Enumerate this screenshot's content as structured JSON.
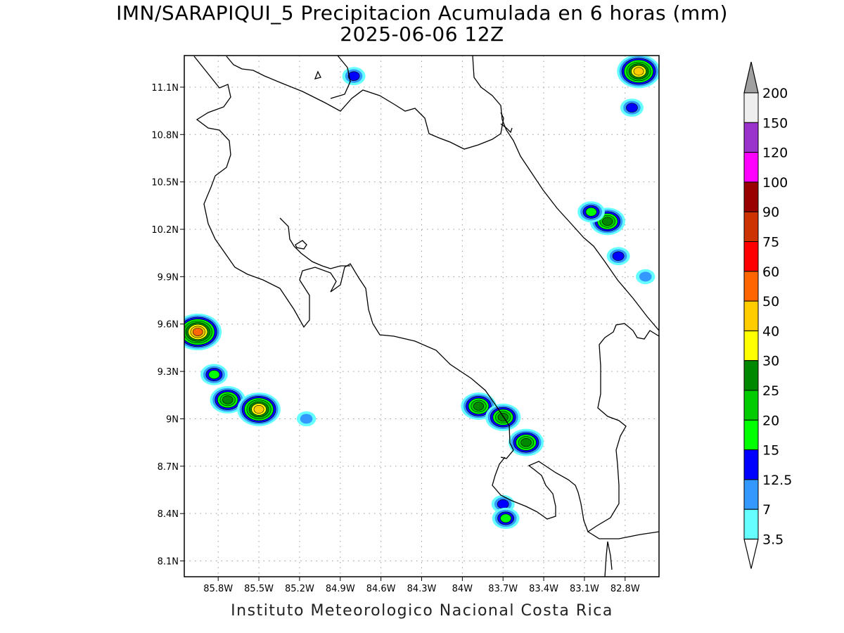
{
  "title": {
    "line1": "IMN/SARAPIQUI_5 Precipitacion Acumulada en 6 horas (mm)",
    "line2": "2025-06-06 12Z"
  },
  "credit": "Instituto Meteorologico Nacional Costa Rica",
  "map": {
    "lon_range": [
      -86.05,
      -82.55
    ],
    "lat_range": [
      8.0,
      11.3
    ],
    "lon_ticks": [
      {
        "value": -85.8,
        "label": "85.8W"
      },
      {
        "value": -85.5,
        "label": "85.5W"
      },
      {
        "value": -85.2,
        "label": "85.2W"
      },
      {
        "value": -84.9,
        "label": "84.9W"
      },
      {
        "value": -84.6,
        "label": "84.6W"
      },
      {
        "value": -84.3,
        "label": "84.3W"
      },
      {
        "value": -84.0,
        "label": "84W"
      },
      {
        "value": -83.7,
        "label": "83.7W"
      },
      {
        "value": -83.4,
        "label": "83.4W"
      },
      {
        "value": -83.1,
        "label": "83.1W"
      },
      {
        "value": -82.8,
        "label": "82.8W"
      }
    ],
    "lat_ticks": [
      {
        "value": 11.1,
        "label": "11.1N"
      },
      {
        "value": 10.8,
        "label": "10.8N"
      },
      {
        "value": 10.5,
        "label": "10.5N"
      },
      {
        "value": 10.2,
        "label": "10.2N"
      },
      {
        "value": 9.9,
        "label": "9.9N"
      },
      {
        "value": 9.6,
        "label": "9.6N"
      },
      {
        "value": 9.3,
        "label": "9.3N"
      },
      {
        "value": 9.0,
        "label": "9N"
      },
      {
        "value": 8.7,
        "label": "8.7N"
      },
      {
        "value": 8.4,
        "label": "8.4N"
      },
      {
        "value": 8.1,
        "label": "8.1N"
      }
    ],
    "grid": true,
    "coastline_color": "#000000"
  },
  "colorbar": {
    "levels": [
      {
        "label": "3.5",
        "color": "#ffffff"
      },
      {
        "label": "7",
        "color": "#66ffff"
      },
      {
        "label": "12.5",
        "color": "#3399ff"
      },
      {
        "label": "15",
        "color": "#0000ff"
      },
      {
        "label": "20",
        "color": "#00ff00"
      },
      {
        "label": "25",
        "color": "#00cc00"
      },
      {
        "label": "30",
        "color": "#008800"
      },
      {
        "label": "40",
        "color": "#ffff00"
      },
      {
        "label": "50",
        "color": "#ffcc00"
      },
      {
        "label": "60",
        "color": "#ff6600"
      },
      {
        "label": "75",
        "color": "#ff0000"
      },
      {
        "label": "90",
        "color": "#cc3300"
      },
      {
        "label": "100",
        "color": "#990000"
      },
      {
        "label": "120",
        "color": "#ff00ff"
      },
      {
        "label": "150",
        "color": "#9933cc"
      },
      {
        "label": "200",
        "color": "#eeeeee"
      }
    ],
    "over_color": "#a0a0a0",
    "under_color": "#ffffff"
  },
  "chart_data": {
    "type": "heatmap",
    "units": "mm",
    "cells": [
      {
        "lon": -85.95,
        "lat": 9.55,
        "max_mm": 55
      },
      {
        "lon": -85.83,
        "lat": 9.28,
        "max_mm": 15
      },
      {
        "lon": -85.73,
        "lat": 9.12,
        "max_mm": 25
      },
      {
        "lon": -85.5,
        "lat": 9.06,
        "max_mm": 40
      },
      {
        "lon": -85.15,
        "lat": 9.0,
        "max_mm": 7
      },
      {
        "lon": -83.88,
        "lat": 9.08,
        "max_mm": 25
      },
      {
        "lon": -83.7,
        "lat": 9.01,
        "max_mm": 25
      },
      {
        "lon": -83.53,
        "lat": 8.85,
        "max_mm": 25
      },
      {
        "lon": -83.7,
        "lat": 8.46,
        "max_mm": 12.5
      },
      {
        "lon": -83.68,
        "lat": 8.37,
        "max_mm": 15
      },
      {
        "lon": -82.93,
        "lat": 10.25,
        "max_mm": 25
      },
      {
        "lon": -83.05,
        "lat": 10.31,
        "max_mm": 15
      },
      {
        "lon": -82.7,
        "lat": 11.2,
        "max_mm": 40
      },
      {
        "lon": -82.75,
        "lat": 10.97,
        "max_mm": 12.5
      },
      {
        "lon": -84.8,
        "lat": 11.17,
        "max_mm": 12.5
      },
      {
        "lon": -82.85,
        "lat": 10.03,
        "max_mm": 12.5
      },
      {
        "lon": -82.65,
        "lat": 9.9,
        "max_mm": 7
      }
    ]
  }
}
